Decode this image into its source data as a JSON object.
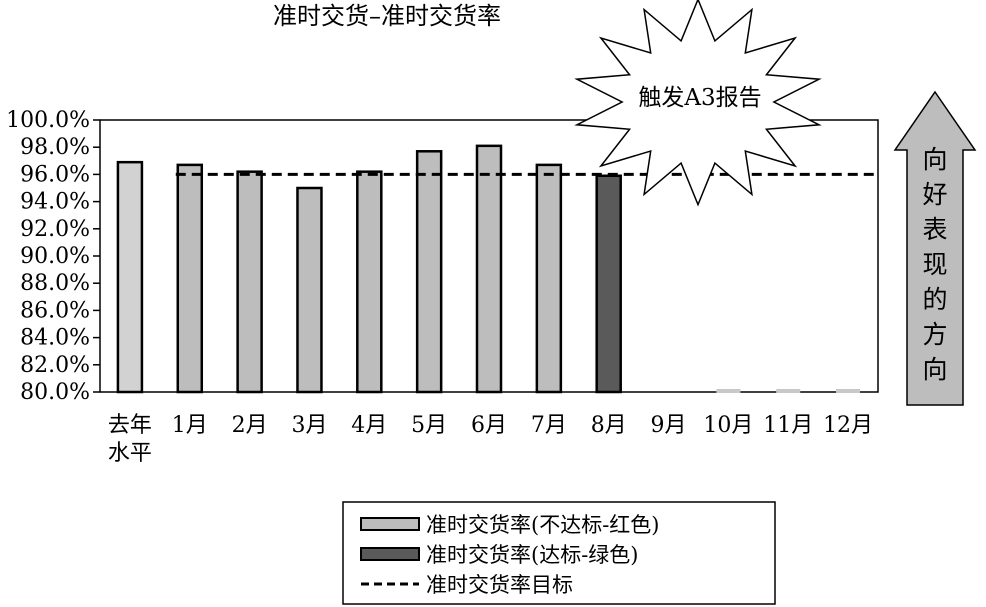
{
  "chart_data": {
    "type": "bar",
    "title": "准时交货–准时交货率",
    "categories": [
      "去年水平",
      "1月",
      "2月",
      "3月",
      "4月",
      "5月",
      "6月",
      "7月",
      "8月",
      "9月",
      "10月",
      "11月",
      "12月"
    ],
    "category_lines": [
      [
        "去年",
        "水平"
      ],
      [
        "1月"
      ],
      [
        "2月"
      ],
      [
        "3月"
      ],
      [
        "4月"
      ],
      [
        "5月"
      ],
      [
        "6月"
      ],
      [
        "7月"
      ],
      [
        "8月"
      ],
      [
        "9月"
      ],
      [
        "10月"
      ],
      [
        "11月"
      ],
      [
        "12月"
      ]
    ],
    "values": [
      96.9,
      96.7,
      96.2,
      95.0,
      96.2,
      97.7,
      98.1,
      96.7,
      95.9,
      null,
      80.0,
      80.0,
      80.0
    ],
    "bar_status": [
      "baseline",
      "not_met",
      "not_met",
      "not_met",
      "not_met",
      "not_met",
      "not_met",
      "not_met",
      "met",
      "none",
      "not_met",
      "not_met",
      "not_met"
    ],
    "target": 96.0,
    "target_start_index": 1,
    "ylim": [
      80.0,
      100.0
    ],
    "y_ticks": [
      "100.0%",
      "98.0%",
      "96.0%",
      "94.0%",
      "92.0%",
      "90.0%",
      "88.0%",
      "86.0%",
      "84.0%",
      "82.0%",
      "80.0%"
    ],
    "xlabel": "",
    "ylabel": "",
    "grid": false,
    "colors": {
      "baseline": "#d2d2d2",
      "not_met": "#bdbdbd",
      "met": "#5a5a5a",
      "target_line": "#000000",
      "arrow": "#bdbdbd"
    },
    "legend": {
      "placement": "bottom",
      "items": [
        {
          "label": "准时交货率(不达标-红色)",
          "kind": "bar",
          "color": "#bdbdbd"
        },
        {
          "label": "准时交货率(达标-绿色)",
          "kind": "bar",
          "color": "#5a5a5a"
        },
        {
          "label": "准时交货率目标",
          "kind": "dashed-line",
          "color": "#000000"
        }
      ]
    },
    "callout": "触发A3报告",
    "direction_arrow": {
      "label_chars": [
        "向",
        "好",
        "表",
        "现",
        "的",
        "方",
        "向"
      ],
      "direction": "up"
    }
  }
}
